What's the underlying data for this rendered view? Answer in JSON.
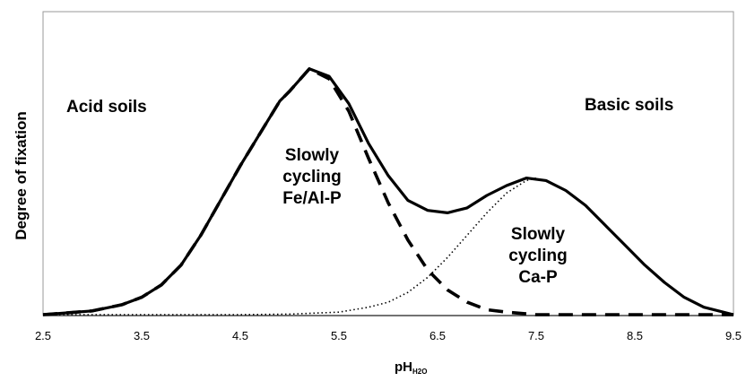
{
  "chart_data": {
    "type": "line",
    "xlabel": "pH",
    "xlabel_subscript": "H2O",
    "ylabel": "Degree of fixation",
    "xlim": [
      2.5,
      9.5
    ],
    "x_ticks": [
      "2.5",
      "3.5",
      "4.5",
      "5.5",
      "6.5",
      "7.5",
      "8.5",
      "9.5"
    ],
    "y_ticks_shown": false,
    "grid": false,
    "annotations": [
      {
        "id": "acid",
        "text": "Acid soils"
      },
      {
        "id": "basic",
        "text": "Basic soils"
      },
      {
        "id": "fe",
        "lines": [
          "Slowly",
          "cycling",
          "Fe/Al-P"
        ]
      },
      {
        "id": "ca",
        "lines": [
          "Slowly",
          "cycling",
          "Ca-P"
        ]
      }
    ],
    "series": [
      {
        "style": "solid",
        "color": "#000000",
        "x": [
          2.5,
          3.0,
          3.3,
          3.5,
          3.7,
          3.9,
          4.1,
          4.3,
          4.5,
          4.7,
          4.9,
          5.0,
          5.2,
          5.4,
          5.6,
          5.8,
          6.0,
          6.2,
          6.4,
          6.6,
          6.8,
          7.0,
          7.2,
          7.4,
          7.6,
          7.8,
          8.0,
          8.2,
          8.4,
          8.6,
          8.8,
          9.0,
          9.2,
          9.5
        ],
        "y": [
          0.0,
          0.015,
          0.04,
          0.07,
          0.12,
          0.2,
          0.32,
          0.46,
          0.6,
          0.73,
          0.86,
          0.9,
          0.99,
          0.96,
          0.85,
          0.69,
          0.56,
          0.46,
          0.42,
          0.41,
          0.43,
          0.48,
          0.52,
          0.55,
          0.54,
          0.5,
          0.44,
          0.36,
          0.28,
          0.2,
          0.13,
          0.07,
          0.03,
          0.0
        ]
      },
      {
        "style": "dashed",
        "color": "#000000",
        "x": [
          2.5,
          3.0,
          3.3,
          3.5,
          3.7,
          3.9,
          4.1,
          4.3,
          4.5,
          4.7,
          4.9,
          5.0,
          5.2,
          5.4,
          5.6,
          5.8,
          6.0,
          6.2,
          6.4,
          6.6,
          6.8,
          7.0,
          7.2,
          7.5,
          8.0,
          9.5
        ],
        "y": [
          0.0,
          0.015,
          0.04,
          0.07,
          0.12,
          0.2,
          0.32,
          0.46,
          0.6,
          0.73,
          0.86,
          0.9,
          0.99,
          0.95,
          0.82,
          0.63,
          0.45,
          0.3,
          0.18,
          0.1,
          0.05,
          0.02,
          0.01,
          0.0,
          0.0,
          0.0
        ]
      },
      {
        "style": "dotted",
        "color": "#000000",
        "x": [
          2.5,
          4.5,
          5.0,
          5.5,
          5.8,
          6.0,
          6.2,
          6.4,
          6.6,
          6.8,
          7.0,
          7.2,
          7.4,
          7.5
        ],
        "y": [
          0.0,
          0.0,
          0.002,
          0.01,
          0.03,
          0.05,
          0.09,
          0.15,
          0.23,
          0.32,
          0.41,
          0.49,
          0.54,
          0.55
        ]
      }
    ]
  }
}
